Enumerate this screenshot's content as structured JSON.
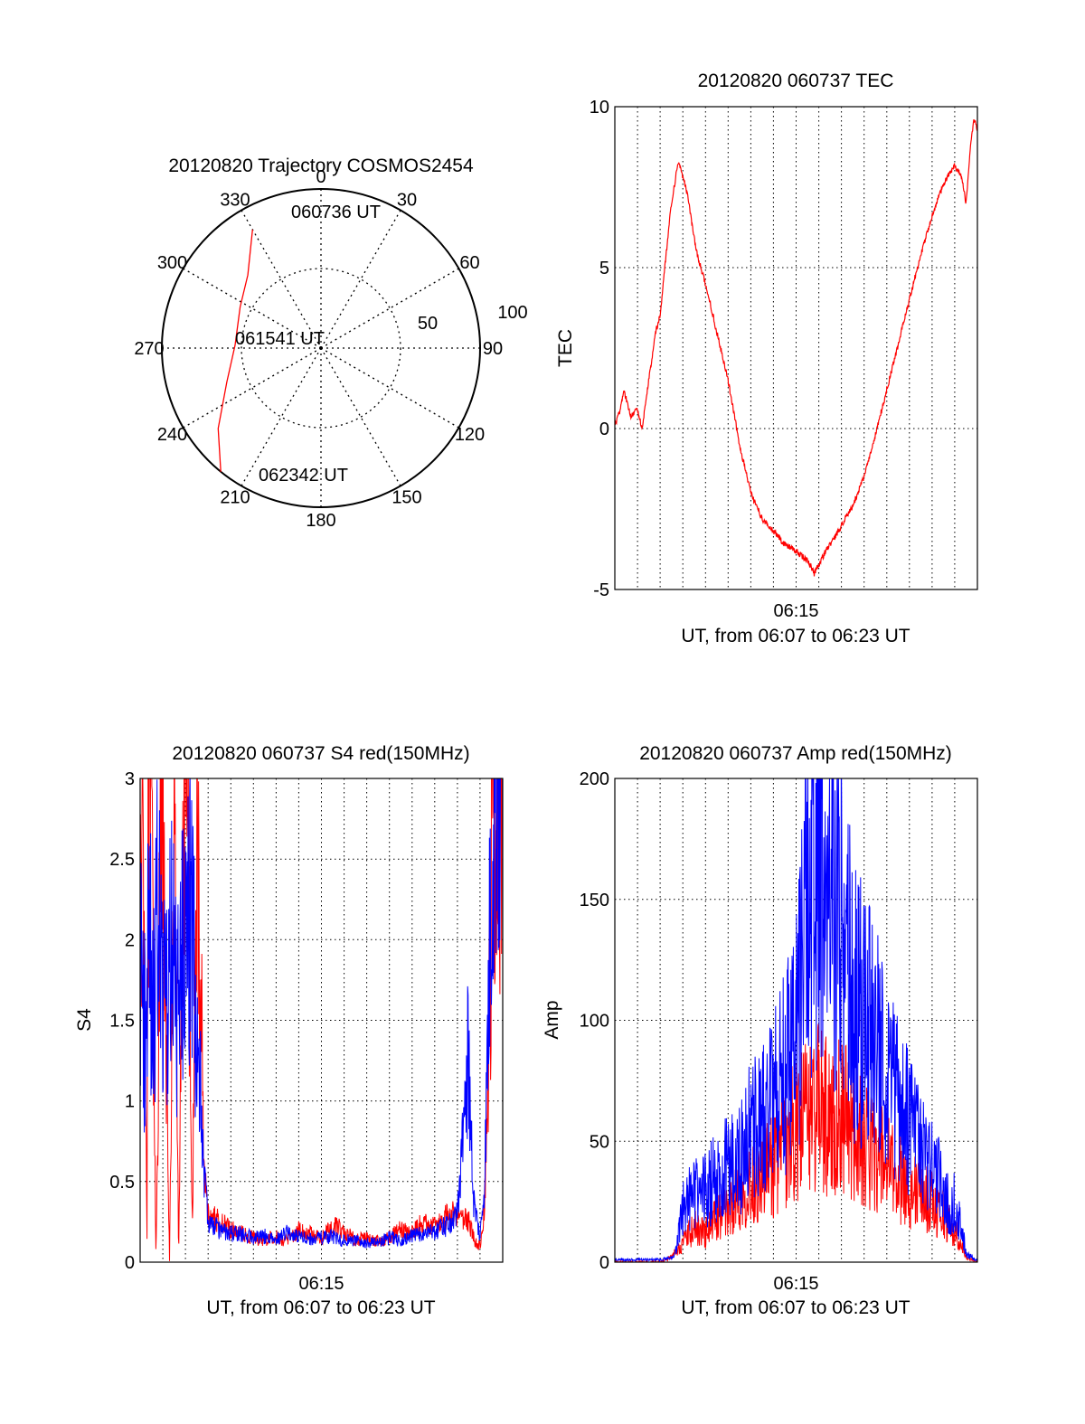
{
  "chart_data": [
    {
      "id": "trajectory",
      "type": "polar",
      "title": "20120820 Trajectory COSMOS2454",
      "azimuth_labels": [
        "0",
        "30",
        "60",
        "90",
        "120",
        "150",
        "180",
        "210",
        "240",
        "270",
        "300",
        "330"
      ],
      "radial_labels": [
        "50",
        "100"
      ],
      "radial_range": [
        0,
        100
      ],
      "grid": true,
      "annotations": [
        "060736 UT",
        "061541 UT",
        "062342 UT"
      ],
      "series": [
        {
          "color": "#ff0000",
          "points": [
            {
              "az": 330,
              "r": 86
            },
            {
              "az": 315,
              "r": 65
            },
            {
              "az": 297,
              "r": 57
            },
            {
              "az": 272,
              "r": 54
            },
            {
              "az": 250,
              "r": 63
            },
            {
              "az": 232,
              "r": 82
            },
            {
              "az": 219,
              "r": 100
            }
          ]
        }
      ]
    },
    {
      "id": "tec",
      "type": "line",
      "title": "20120820 060737 TEC",
      "xlabel": "UT, from 06:07 to 06:23 UT",
      "ylabel": "TEC",
      "xticks": [
        {
          "t": 8,
          "label": "06:15"
        }
      ],
      "xlim": [
        0,
        16
      ],
      "ylim": [
        -5,
        10
      ],
      "yticks": [
        -5,
        0,
        5,
        10
      ],
      "grid": true,
      "series": [
        {
          "color": "#ff0000",
          "x": [
            0,
            0.2,
            0.4,
            0.7,
            1.0,
            1.2,
            1.5,
            1.8,
            2.0,
            2.2,
            2.5,
            2.8,
            3.2,
            3.6,
            4.0,
            4.5,
            5.0,
            5.5,
            6.0,
            6.5,
            7.0,
            7.5,
            8.0,
            8.5,
            8.8,
            9.1,
            9.3,
            9.5,
            9.7,
            10.0,
            10.5,
            11.0,
            11.5,
            12.0,
            12.5,
            13.0,
            13.5,
            14.0,
            14.5,
            15.0,
            15.3,
            15.5,
            15.7,
            15.85,
            16.0
          ],
          "y": [
            0.1,
            0.5,
            1.2,
            0.4,
            0.6,
            0.0,
            1.5,
            3.0,
            3.5,
            5.0,
            7.0,
            8.3,
            7.3,
            5.5,
            4.5,
            3.0,
            1.5,
            -0.5,
            -2.0,
            -2.8,
            -3.2,
            -3.6,
            -3.8,
            -4.1,
            -4.5,
            -4.1,
            -3.8,
            -3.6,
            -3.4,
            -3.0,
            -2.4,
            -1.5,
            -0.2,
            1.2,
            2.6,
            4.0,
            5.4,
            6.6,
            7.6,
            8.2,
            7.8,
            7.0,
            8.8,
            9.6,
            9.3
          ]
        }
      ]
    },
    {
      "id": "s4",
      "type": "line",
      "title": "20120820 060737 S4 red(150MHz)",
      "xlabel": "UT, from 06:07 to 06:23 UT",
      "ylabel": "S4",
      "xticks": [
        {
          "t": 8,
          "label": "06:15"
        }
      ],
      "xlim": [
        0,
        16
      ],
      "ylim": [
        0,
        3
      ],
      "yticks": [
        0,
        0.5,
        1,
        1.5,
        2,
        2.5,
        3
      ],
      "grid": true,
      "series": [
        {
          "color": "#ff0000",
          "x": [
            0,
            0.1,
            0.2,
            0.3,
            0.35,
            0.4,
            0.5,
            0.7,
            0.9,
            1.0,
            1.1,
            1.3,
            1.5,
            1.7,
            1.9,
            2.1,
            2.3,
            2.5,
            2.7,
            2.8,
            3.0,
            3.5,
            4.0,
            4.5,
            5.0,
            5.5,
            6.0,
            6.5,
            7.0,
            7.5,
            8.0,
            8.5,
            9.0,
            9.5,
            10.0,
            10.5,
            11.0,
            11.5,
            12.0,
            12.5,
            13.0,
            13.5,
            14.0,
            14.5,
            14.8,
            15.0,
            15.2,
            15.4,
            15.6,
            16.0
          ],
          "y": [
            2.5,
            3.0,
            2.2,
            0,
            3.0,
            2.8,
            3.0,
            0,
            2.6,
            3.0,
            1.8,
            0,
            3.0,
            0,
            2.7,
            3.0,
            0.2,
            2.6,
            1.5,
            0.6,
            0.3,
            0.25,
            0.2,
            0.18,
            0.15,
            0.14,
            0.16,
            0.13,
            0.2,
            0.18,
            0.15,
            0.22,
            0.2,
            0.14,
            0.15,
            0.13,
            0.16,
            0.2,
            0.18,
            0.25,
            0.22,
            0.28,
            0.3,
            0.25,
            0.12,
            0.1,
            0.35,
            1.5,
            3.0,
            3.0
          ]
        },
        {
          "color": "#0000ff",
          "x": [
            0,
            0.2,
            0.4,
            0.6,
            0.8,
            1.0,
            1.2,
            1.4,
            1.6,
            1.8,
            2.0,
            2.2,
            2.4,
            2.6,
            2.8,
            3.0,
            3.5,
            4.0,
            4.5,
            5.0,
            5.5,
            6.0,
            6.5,
            7.0,
            7.5,
            8.0,
            8.5,
            9.0,
            9.5,
            10.0,
            10.5,
            11.0,
            11.5,
            12.0,
            12.5,
            13.0,
            13.5,
            14.0,
            14.3,
            14.5,
            14.7,
            15.0,
            15.2,
            15.4,
            15.6,
            16.0
          ],
          "y": [
            1.8,
            1.4,
            2.0,
            1.5,
            2.3,
            1.7,
            1.6,
            2.1,
            1.5,
            2.0,
            1.8,
            2.2,
            1.7,
            1.2,
            0.6,
            0.25,
            0.2,
            0.18,
            0.17,
            0.15,
            0.16,
            0.14,
            0.18,
            0.15,
            0.14,
            0.15,
            0.16,
            0.13,
            0.14,
            0.12,
            0.13,
            0.15,
            0.14,
            0.16,
            0.18,
            0.2,
            0.22,
            0.3,
            0.9,
            1.3,
            0.4,
            0.15,
            0.5,
            1.8,
            3.0,
            3.0
          ]
        }
      ]
    },
    {
      "id": "amp",
      "type": "line",
      "title": "20120820 060737 Amp red(150MHz)",
      "xlabel": "UT, from 06:07 to 06:23 UT",
      "ylabel": "Amp",
      "xticks": [
        {
          "t": 8,
          "label": "06:15"
        }
      ],
      "xlim": [
        0,
        16
      ],
      "ylim": [
        0,
        200
      ],
      "yticks": [
        0,
        50,
        100,
        150,
        200
      ],
      "grid": true,
      "series": [
        {
          "color": "#ff0000",
          "x": [
            0,
            1.0,
            2.0,
            2.5,
            3.0,
            3.5,
            4.0,
            4.5,
            5.0,
            5.5,
            6.0,
            6.5,
            7.0,
            7.5,
            8.0,
            8.5,
            9.0,
            9.5,
            10.0,
            10.5,
            11.0,
            11.5,
            12.0,
            12.5,
            13.0,
            13.5,
            14.0,
            14.5,
            15.0,
            15.3,
            15.5,
            16.0
          ],
          "y": [
            0,
            0,
            0,
            2,
            8,
            14,
            12,
            18,
            22,
            28,
            32,
            35,
            40,
            48,
            55,
            60,
            65,
            58,
            62,
            55,
            48,
            45,
            40,
            35,
            30,
            28,
            25,
            20,
            12,
            8,
            2,
            0
          ]
        },
        {
          "color": "#0000ff",
          "x": [
            0,
            1.0,
            2.0,
            2.6,
            2.8,
            3.0,
            3.5,
            4.0,
            4.5,
            5.0,
            5.5,
            6.0,
            6.5,
            7.0,
            7.5,
            8.0,
            8.3,
            8.5,
            9.0,
            9.3,
            9.5,
            10.0,
            10.5,
            11.0,
            11.5,
            12.0,
            12.5,
            13.0,
            13.5,
            14.0,
            14.5,
            14.8,
            15.0,
            15.3,
            15.5,
            16.0
          ],
          "y": [
            1,
            1,
            1,
            2,
            10,
            22,
            28,
            30,
            35,
            40,
            42,
            55,
            60,
            70,
            78,
            95,
            120,
            150,
            170,
            130,
            160,
            140,
            110,
            100,
            90,
            80,
            70,
            55,
            45,
            40,
            30,
            20,
            25,
            15,
            3,
            1
          ]
        }
      ]
    }
  ]
}
